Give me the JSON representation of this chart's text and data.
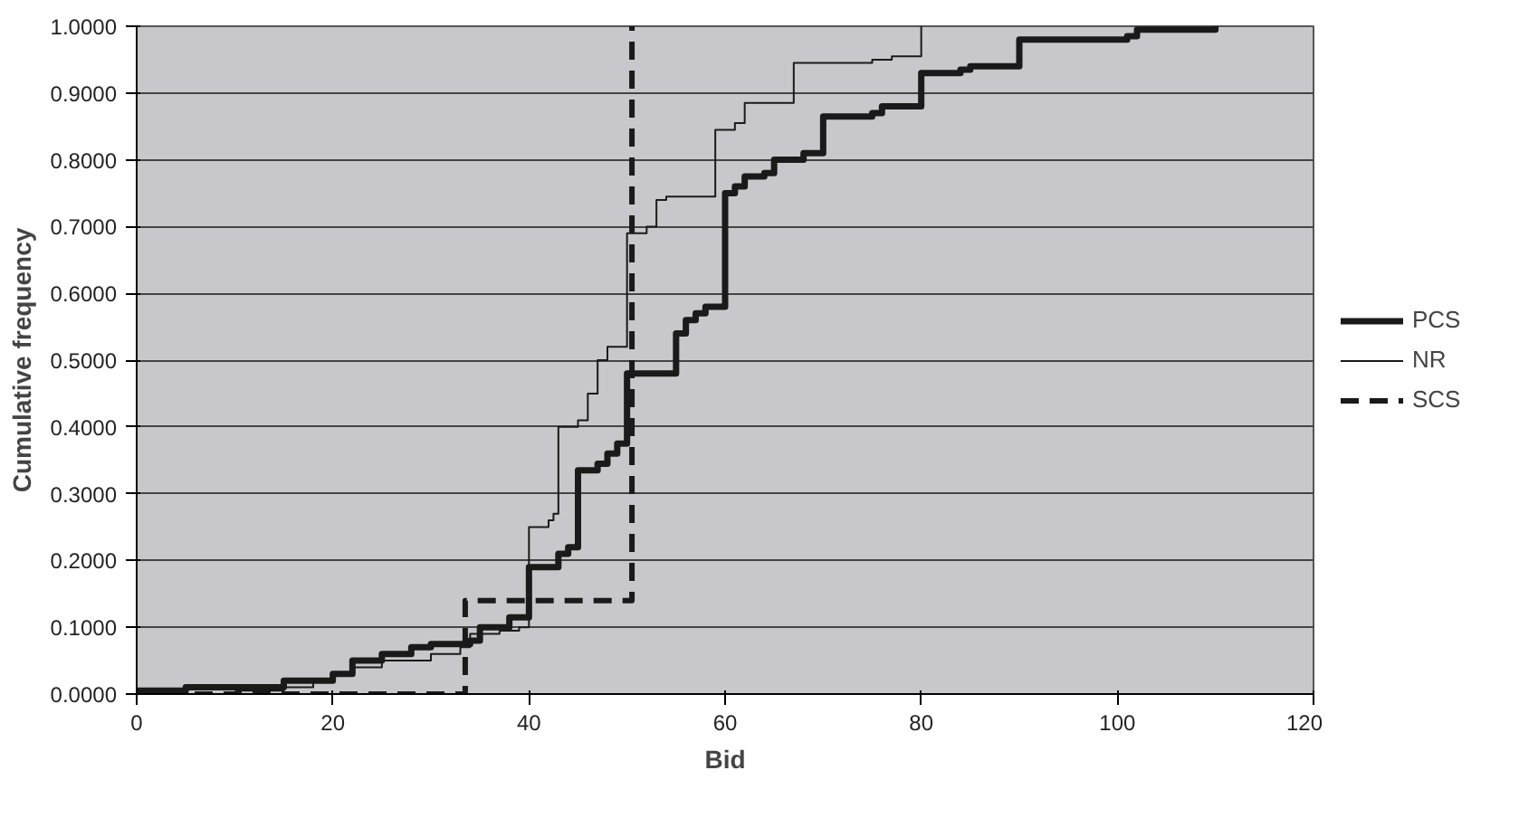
{
  "chart_data": {
    "type": "step",
    "xlabel": "Bid",
    "ylabel": "Cumulative frequency",
    "xlim": [
      0,
      120
    ],
    "xticks": [
      0,
      20,
      40,
      60,
      80,
      100,
      120
    ],
    "ylim": [
      0,
      1
    ],
    "yticks": [
      {
        "value": 0,
        "label": "0.0000"
      },
      {
        "value": 0.1,
        "label": "0.1000"
      },
      {
        "value": 0.2,
        "label": "0.2000"
      },
      {
        "value": 0.3,
        "label": "0.3000"
      },
      {
        "value": 0.4,
        "label": "0.4000"
      },
      {
        "value": 0.5,
        "label": "0.5000"
      },
      {
        "value": 0.6,
        "label": "0.6000"
      },
      {
        "value": 0.7,
        "label": "0.7000"
      },
      {
        "value": 0.8,
        "label": "0.8000"
      },
      {
        "value": 0.9,
        "label": "0.9000"
      },
      {
        "value": 1,
        "label": "1.0000"
      }
    ],
    "grid": "y",
    "legend": "right",
    "marker": "none",
    "series": [
      {
        "name": "PCS",
        "color": "#1a1a1a",
        "line_style": "solid",
        "x": [
          0,
          5,
          15,
          20,
          22,
          25,
          28,
          30,
          34,
          35,
          38,
          40,
          40,
          43,
          44,
          45,
          45,
          47,
          48,
          49,
          50,
          50,
          55,
          55,
          56,
          57,
          58,
          60,
          60,
          61,
          62,
          64,
          65,
          68,
          70,
          70,
          75,
          76,
          80,
          80,
          84,
          85,
          90,
          90,
          101,
          102,
          110
        ],
        "values": [
          0.005,
          0.01,
          0.02,
          0.03,
          0.05,
          0.06,
          0.07,
          0.075,
          0.08,
          0.1,
          0.115,
          0.12,
          0.19,
          0.21,
          0.22,
          0.23,
          0.335,
          0.345,
          0.36,
          0.375,
          0.38,
          0.48,
          0.49,
          0.54,
          0.56,
          0.57,
          0.58,
          0.585,
          0.75,
          0.76,
          0.775,
          0.78,
          0.8,
          0.81,
          0.815,
          0.865,
          0.87,
          0.88,
          0.885,
          0.93,
          0.935,
          0.94,
          0.945,
          0.98,
          0.985,
          0.995,
          1.0
        ]
      },
      {
        "name": "NR",
        "color": "#1a1a1a",
        "line_style": "solid",
        "x": [
          10,
          15,
          18,
          20,
          22,
          25,
          30,
          33,
          34,
          37,
          39,
          40,
          42,
          42.5,
          43,
          43,
          45,
          46,
          47,
          47,
          48,
          50,
          50,
          52,
          53,
          54,
          59,
          59,
          61,
          62,
          62,
          67,
          67,
          75,
          77,
          80,
          80
        ],
        "values": [
          0.005,
          0.01,
          0.02,
          0.03,
          0.04,
          0.05,
          0.06,
          0.07,
          0.09,
          0.095,
          0.1,
          0.25,
          0.26,
          0.27,
          0.29,
          0.4,
          0.41,
          0.45,
          0.455,
          0.5,
          0.52,
          0.54,
          0.69,
          0.7,
          0.74,
          0.745,
          0.75,
          0.845,
          0.855,
          0.865,
          0.885,
          0.89,
          0.945,
          0.95,
          0.955,
          0.965,
          1.0
        ]
      },
      {
        "name": "SCS",
        "color": "#1a1a1a",
        "line_style": "dashed",
        "x": [
          0,
          33.5,
          33.5,
          50.5,
          50.5
        ],
        "values": [
          0,
          0,
          0.14,
          0.14,
          1.0
        ]
      }
    ]
  }
}
